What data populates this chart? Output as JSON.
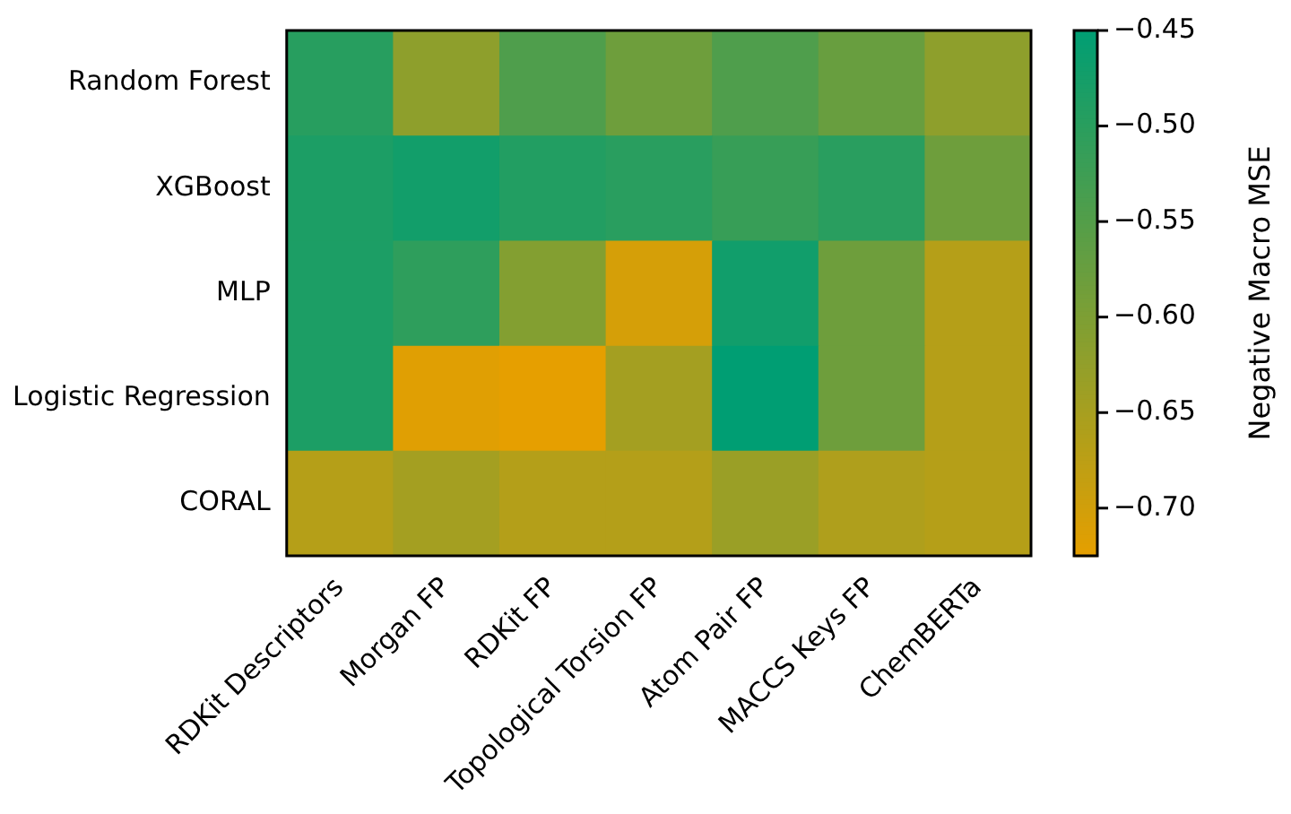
{
  "chart_data": {
    "type": "heatmap",
    "categories": [
      "RDKit Descriptors",
      "Morgan FP",
      "RDKit FP",
      "Topological Torsion FP",
      "Atom Pair FP",
      "MACCS Keys FP",
      "ChemBERTa"
    ],
    "y_categories": [
      "Random Forest",
      "XGBoost",
      "MLP",
      "Logistic Regression",
      "CORAL"
    ],
    "cells": [
      [
        -0.497,
        -0.62,
        -0.544,
        -0.582,
        -0.544,
        -0.574,
        -0.62
      ],
      [
        -0.483,
        -0.472,
        -0.491,
        -0.499,
        -0.516,
        -0.499,
        -0.582
      ],
      [
        -0.483,
        -0.505,
        -0.607,
        -0.705,
        -0.47,
        -0.582,
        -0.667
      ],
      [
        -0.483,
        -0.718,
        -0.725,
        -0.646,
        -0.45,
        -0.582,
        -0.667
      ],
      [
        -0.667,
        -0.646,
        -0.665,
        -0.665,
        -0.634,
        -0.659,
        -0.667
      ]
    ],
    "clabel": "Negative Macro MSE",
    "clim": [
      -0.725,
      -0.45
    ],
    "cticks": [
      {
        "value": -0.45,
        "label": "−0.45"
      },
      {
        "value": -0.5,
        "label": "−0.50"
      },
      {
        "value": -0.55,
        "label": "−0.55"
      },
      {
        "value": -0.6,
        "label": "−0.60"
      },
      {
        "value": -0.65,
        "label": "−0.65"
      },
      {
        "value": -0.7,
        "label": "−0.70"
      }
    ]
  }
}
